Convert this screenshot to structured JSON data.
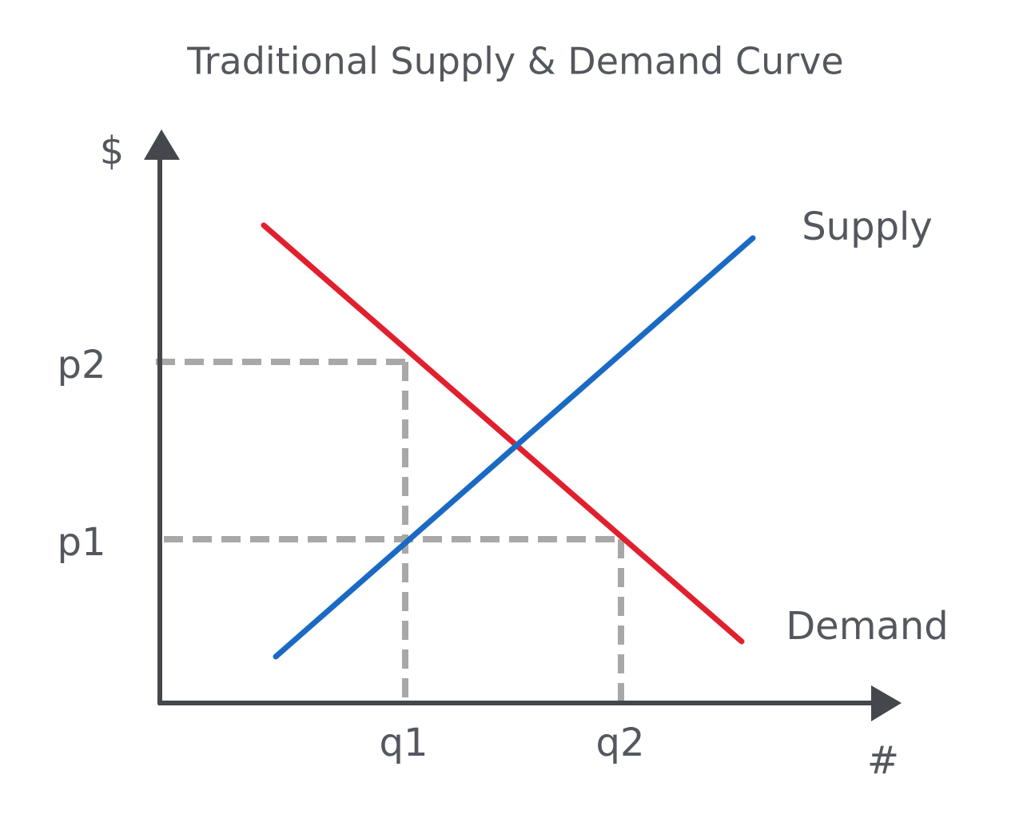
{
  "title": "Traditional Supply & Demand Curve",
  "axes": {
    "y_label": "$",
    "x_label": "#"
  },
  "y_ticks": [
    "p2",
    "p1"
  ],
  "x_ticks": [
    "q1",
    "q2"
  ],
  "curves": {
    "supply": "Supply",
    "demand": "Demand"
  }
}
